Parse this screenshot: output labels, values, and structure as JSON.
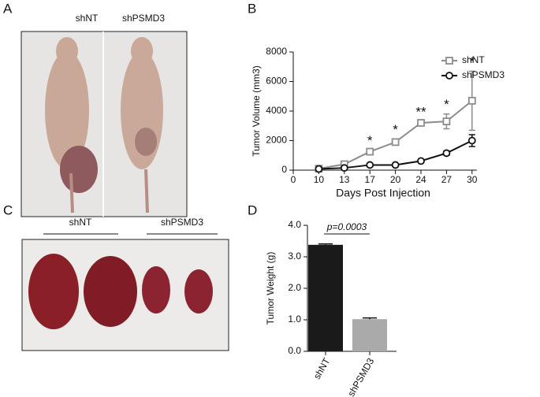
{
  "panels": {
    "a": {
      "label": "A",
      "left": "shNT",
      "right": "shPSMD3"
    },
    "b": {
      "label": "B"
    },
    "c": {
      "label": "C",
      "left": "shNT",
      "right": "shPSMD3"
    },
    "d": {
      "label": "D"
    }
  },
  "chart_data": [
    {
      "type": "line",
      "x_label": "Days Post Injection",
      "y_label": "Tumor Volume (mm3)",
      "categories": [
        "0",
        "10",
        "13",
        "17",
        "20",
        "24",
        "27",
        "30"
      ],
      "series": [
        {
          "name": "shNT",
          "color": "#8c8c8c",
          "marker": "square",
          "values": [
            null,
            100,
            400,
            1250,
            1900,
            3200,
            3300,
            4700
          ],
          "errors": [
            null,
            50,
            100,
            100,
            200,
            100,
            500,
            2000
          ]
        },
        {
          "name": "shPSMD3",
          "color": "#111111",
          "marker": "circle",
          "values": [
            null,
            80,
            150,
            350,
            350,
            620,
            1150,
            2000
          ],
          "errors": [
            null,
            20,
            50,
            80,
            50,
            50,
            150,
            400
          ]
        }
      ],
      "annotations": [
        {
          "x": "17",
          "label": "*"
        },
        {
          "x": "20",
          "label": "*"
        },
        {
          "x": "24",
          "label": "**"
        },
        {
          "x": "27",
          "label": "*"
        },
        {
          "x": "30",
          "label": "*"
        }
      ],
      "ylim": [
        0,
        8000
      ],
      "yticks": [
        0,
        2000,
        4000,
        6000,
        8000
      ],
      "legend": "upper right"
    },
    {
      "type": "bar",
      "y_label": "Tumor Weight (g)",
      "categories": [
        "shNT",
        "shPSMD3"
      ],
      "values": [
        3.38,
        1.02
      ],
      "errors": [
        0.03,
        0.04
      ],
      "colors": [
        "#1a1a1a",
        "#aaaaaa"
      ],
      "annotation": "p=0.0003",
      "ylim": [
        0,
        4
      ],
      "yticks": [
        {
          "value": 0,
          "label": "0.0"
        },
        {
          "value": 1,
          "label": "1.0"
        },
        {
          "value": 2,
          "label": "2.0"
        },
        {
          "value": 3,
          "label": "3.0"
        },
        {
          "value": 4,
          "label": "4.0"
        }
      ]
    }
  ]
}
